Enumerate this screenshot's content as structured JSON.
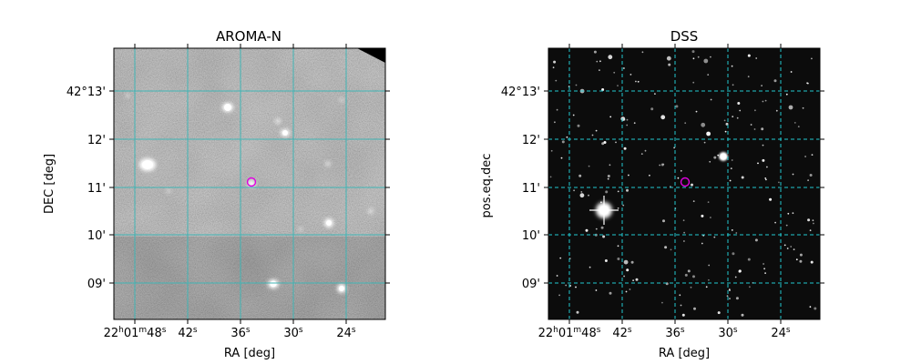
{
  "panels": [
    {
      "title": "AROMA-N",
      "xlabel": "RA [deg]",
      "ylabel": "DEC [deg]",
      "style": "grey-survey-image",
      "grid_color": "#3fb5b5"
    },
    {
      "title": "DSS",
      "xlabel": "RA [deg]",
      "ylabel": "pos.eq.dec",
      "style": "dark-starfield",
      "grid_color": "#22c8d0"
    }
  ],
  "ra_ticks": [
    {
      "h": "22",
      "m": "01",
      "s": "48",
      "first": true
    },
    {
      "s": "42"
    },
    {
      "s": "36"
    },
    {
      "s": "30"
    },
    {
      "s": "24"
    }
  ],
  "dec_ticks": [
    "42°13'",
    "12'",
    "11'",
    "10'",
    "09'"
  ],
  "marker_color": "#e000e0"
}
